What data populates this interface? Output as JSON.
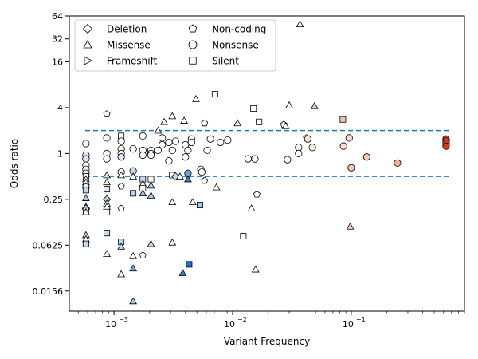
{
  "chart_data": {
    "type": "scatter",
    "xlabel": "Variant Frequency",
    "ylabel": "Odds ratio",
    "xscale": "log",
    "yscale": "log2",
    "xlim": [
      0.00042,
      0.9
    ],
    "ylim": [
      0.0085,
      64
    ],
    "x_ticks": [
      {
        "value": 0.001,
        "base": "10",
        "exp": "−3"
      },
      {
        "value": 0.01,
        "base": "10",
        "exp": "−2"
      },
      {
        "value": 0.1,
        "base": "10",
        "exp": "−1"
      }
    ],
    "y_ticks": [
      {
        "value": 0.015625,
        "label": "0.0156"
      },
      {
        "value": 0.0625,
        "label": "0.0625"
      },
      {
        "value": 0.25,
        "label": "0.25"
      },
      {
        "value": 1,
        "label": "1"
      },
      {
        "value": 4,
        "label": "4"
      },
      {
        "value": 16,
        "label": "16"
      },
      {
        "value": 32,
        "label": "32"
      },
      {
        "value": 64,
        "label": "64"
      }
    ],
    "reference_lines": [
      2.0,
      0.5
    ],
    "reference_line_color": "#1f77b4",
    "legend": {
      "placement": "top-left",
      "entries": [
        {
          "label": "Deletion",
          "marker": "diamond"
        },
        {
          "label": "Missense",
          "marker": "triangle-up"
        },
        {
          "label": "Frameshift",
          "marker": "triangle-right"
        },
        {
          "label": "Non-coding",
          "marker": "pentagon"
        },
        {
          "label": "Nonsense",
          "marker": "x-circle"
        },
        {
          "label": "Silent",
          "marker": "square"
        }
      ]
    },
    "colormap": {
      "low": "#1f6fd1",
      "mid": "#ffffff",
      "high": "#d73a1e"
    },
    "points": [
      {
        "x": 0.00058,
        "y": 1.35,
        "m": "circle",
        "c": "#ffffff"
      },
      {
        "x": 0.00058,
        "y": 0.95,
        "m": "circle",
        "c": "#e6eef8"
      },
      {
        "x": 0.00058,
        "y": 0.85,
        "m": "circle",
        "c": "#dbe7f5"
      },
      {
        "x": 0.00058,
        "y": 0.7,
        "m": "circle",
        "c": "#ffffff"
      },
      {
        "x": 0.00058,
        "y": 0.62,
        "m": "circle",
        "c": "#eef3fa"
      },
      {
        "x": 0.00058,
        "y": 0.55,
        "m": "circle",
        "c": "#ffffff"
      },
      {
        "x": 0.00058,
        "y": 0.5,
        "m": "square",
        "c": "#ffffff"
      },
      {
        "x": 0.00058,
        "y": 0.46,
        "m": "triangle",
        "c": "#ffffff"
      },
      {
        "x": 0.00058,
        "y": 0.42,
        "m": "triangle",
        "c": "#dbe7f5"
      },
      {
        "x": 0.00058,
        "y": 0.36,
        "m": "circle",
        "c": "#eef3fa"
      },
      {
        "x": 0.00058,
        "y": 0.33,
        "m": "square",
        "c": "#c6d9ef"
      },
      {
        "x": 0.00058,
        "y": 0.26,
        "m": "triangle",
        "c": "#a9c6ea"
      },
      {
        "x": 0.00058,
        "y": 0.2,
        "m": "triangle",
        "c": "#ffffff"
      },
      {
        "x": 0.00058,
        "y": 0.19,
        "m": "diamond",
        "c": "#bcd3ee"
      },
      {
        "x": 0.00058,
        "y": 0.18,
        "m": "square",
        "c": "#dbe7f5"
      },
      {
        "x": 0.00058,
        "y": 0.17,
        "m": "triangle",
        "c": "#ffffff"
      },
      {
        "x": 0.00058,
        "y": 0.085,
        "m": "triangle",
        "c": "#c6d9ef"
      },
      {
        "x": 0.00058,
        "y": 0.075,
        "m": "triangle",
        "c": "#ffffff"
      },
      {
        "x": 0.00058,
        "y": 0.065,
        "m": "square",
        "c": "#c6d9ef"
      },
      {
        "x": 0.00087,
        "y": 3.3,
        "m": "pentagon",
        "c": "#ffffff"
      },
      {
        "x": 0.00087,
        "y": 1.6,
        "m": "circle",
        "c": "#ffffff"
      },
      {
        "x": 0.00087,
        "y": 1.0,
        "m": "circle",
        "c": "#ffffff"
      },
      {
        "x": 0.00087,
        "y": 0.85,
        "m": "circle",
        "c": "#ffffff"
      },
      {
        "x": 0.00087,
        "y": 0.52,
        "m": "triangle",
        "c": "#dbe7f5"
      },
      {
        "x": 0.00087,
        "y": 0.42,
        "m": "triangle",
        "c": "#ffffff"
      },
      {
        "x": 0.00087,
        "y": 0.34,
        "m": "square",
        "c": "#dbe7f5"
      },
      {
        "x": 0.00087,
        "y": 0.25,
        "m": "diamond",
        "c": "#bcd3ee"
      },
      {
        "x": 0.00087,
        "y": 0.22,
        "m": "triangle",
        "c": "#ffffff"
      },
      {
        "x": 0.00087,
        "y": 0.2,
        "m": "triangle",
        "c": "#ffffff"
      },
      {
        "x": 0.00087,
        "y": 0.17,
        "m": "square",
        "c": "#ffffff"
      },
      {
        "x": 0.00087,
        "y": 0.09,
        "m": "square",
        "c": "#c6d9ef"
      },
      {
        "x": 0.00087,
        "y": 0.048,
        "m": "triangle",
        "c": "#ffffff"
      },
      {
        "x": 0.00115,
        "y": 1.7,
        "m": "square",
        "c": "#ffffff"
      },
      {
        "x": 0.00115,
        "y": 1.45,
        "m": "circle",
        "c": "#ffffff"
      },
      {
        "x": 0.00115,
        "y": 1.15,
        "m": "circle",
        "c": "#ffffff"
      },
      {
        "x": 0.00115,
        "y": 1.0,
        "m": "circle",
        "c": "#ffffff"
      },
      {
        "x": 0.00115,
        "y": 0.9,
        "m": "circle",
        "c": "#dbe7f5"
      },
      {
        "x": 0.00115,
        "y": 0.57,
        "m": "circle",
        "c": "#ffffff"
      },
      {
        "x": 0.00115,
        "y": 0.52,
        "m": "triangle",
        "c": "#ffffff"
      },
      {
        "x": 0.00115,
        "y": 0.37,
        "m": "pentagon",
        "c": "#ffffff"
      },
      {
        "x": 0.00115,
        "y": 0.19,
        "m": "pentagon",
        "c": "#ffffff"
      },
      {
        "x": 0.00115,
        "y": 0.069,
        "m": "square",
        "c": "#bcd3ee"
      },
      {
        "x": 0.00115,
        "y": 0.06,
        "m": "triangle",
        "c": "#bcd3ee"
      },
      {
        "x": 0.00115,
        "y": 0.026,
        "m": "triangle",
        "c": "#ffffff"
      },
      {
        "x": 0.00145,
        "y": 1.15,
        "m": "circle",
        "c": "#ffffff"
      },
      {
        "x": 0.00145,
        "y": 0.59,
        "m": "circle",
        "c": "#c6d9ef"
      },
      {
        "x": 0.00145,
        "y": 0.5,
        "m": "triangle",
        "c": "#ffffff"
      },
      {
        "x": 0.00145,
        "y": 0.3,
        "m": "square",
        "c": "#bcd3ee"
      },
      {
        "x": 0.00145,
        "y": 0.045,
        "m": "triangle",
        "c": "#ffffff"
      },
      {
        "x": 0.00145,
        "y": 0.031,
        "m": "triangle",
        "c": "#6f9fd9"
      },
      {
        "x": 0.00145,
        "y": 0.0115,
        "m": "triangle",
        "c": "#a9c6ea"
      },
      {
        "x": 0.00175,
        "y": 1.7,
        "m": "circle",
        "c": "#ffffff"
      },
      {
        "x": 0.00175,
        "y": 1.1,
        "m": "circle",
        "c": "#ffffff"
      },
      {
        "x": 0.00175,
        "y": 0.95,
        "m": "circle",
        "c": "#ffffff"
      },
      {
        "x": 0.00175,
        "y": 0.46,
        "m": "square",
        "c": "#c6d9ef"
      },
      {
        "x": 0.00175,
        "y": 0.4,
        "m": "triangle",
        "c": "#ffffff"
      },
      {
        "x": 0.00175,
        "y": 0.35,
        "m": "square",
        "c": "#ffffff"
      },
      {
        "x": 0.00175,
        "y": 0.3,
        "m": "triangle",
        "c": "#a9c6ea"
      },
      {
        "x": 0.00175,
        "y": 0.046,
        "m": "pentagon",
        "c": "#ffffff"
      },
      {
        "x": 0.00205,
        "y": 1.1,
        "m": "circle",
        "c": "#ffffff"
      },
      {
        "x": 0.00205,
        "y": 1.0,
        "m": "circle",
        "c": "#ffffff"
      },
      {
        "x": 0.00205,
        "y": 0.95,
        "m": "circle",
        "c": "#ffffff"
      },
      {
        "x": 0.00205,
        "y": 0.46,
        "m": "square",
        "c": "#ffffff"
      },
      {
        "x": 0.00205,
        "y": 0.38,
        "m": "triangle",
        "c": "#bcd3ee"
      },
      {
        "x": 0.00205,
        "y": 0.28,
        "m": "triangle",
        "c": "#a9c6ea"
      },
      {
        "x": 0.00205,
        "y": 0.065,
        "m": "triangle",
        "c": "#c6d9ef"
      },
      {
        "x": 0.00235,
        "y": 2.0,
        "m": "triangle",
        "c": "#ffffff"
      },
      {
        "x": 0.00235,
        "y": 1.1,
        "m": "circle",
        "c": "#ffffff"
      },
      {
        "x": 0.00255,
        "y": 1.6,
        "m": "circle",
        "c": "#ffffff"
      },
      {
        "x": 0.00255,
        "y": 1.3,
        "m": "circle",
        "c": "#ffffff"
      },
      {
        "x": 0.00265,
        "y": 2.6,
        "m": "triangle",
        "c": "#ffffff"
      },
      {
        "x": 0.0029,
        "y": 1.4,
        "m": "circle",
        "c": "#ffffff"
      },
      {
        "x": 0.0029,
        "y": 0.8,
        "m": "circle",
        "c": "#ffffff"
      },
      {
        "x": 0.0031,
        "y": 3.1,
        "m": "triangle",
        "c": "#ffffff"
      },
      {
        "x": 0.0031,
        "y": 1.1,
        "m": "circle",
        "c": "#ffffff"
      },
      {
        "x": 0.0031,
        "y": 0.52,
        "m": "square",
        "c": "#ffffff"
      },
      {
        "x": 0.0031,
        "y": 0.23,
        "m": "triangle",
        "c": "#ffffff"
      },
      {
        "x": 0.0031,
        "y": 0.068,
        "m": "triangle",
        "c": "#ffffff"
      },
      {
        "x": 0.0033,
        "y": 1.45,
        "m": "circle",
        "c": "#ffffff"
      },
      {
        "x": 0.0033,
        "y": 0.5,
        "m": "diamond",
        "c": "#c6d9ef"
      },
      {
        "x": 0.0036,
        "y": 0.5,
        "m": "triangle",
        "c": "#ffffff"
      },
      {
        "x": 0.0038,
        "y": 0.027,
        "m": "triangle",
        "c": "#3b82d6"
      },
      {
        "x": 0.0039,
        "y": 2.7,
        "m": "triangle",
        "c": "#ffffff"
      },
      {
        "x": 0.004,
        "y": 1.3,
        "m": "circle",
        "c": "#ffffff"
      },
      {
        "x": 0.004,
        "y": 0.9,
        "m": "circle",
        "c": "#ffffff"
      },
      {
        "x": 0.0042,
        "y": 1.1,
        "m": "circle",
        "c": "#ffffff"
      },
      {
        "x": 0.0042,
        "y": 0.55,
        "m": "circle",
        "c": "#6f9fd9"
      },
      {
        "x": 0.0042,
        "y": 0.46,
        "m": "triangle",
        "c": "#3b82d6"
      },
      {
        "x": 0.0043,
        "y": 0.035,
        "m": "square",
        "c": "#1f6fd1"
      },
      {
        "x": 0.0045,
        "y": 1.55,
        "m": "circle",
        "c": "#ffffff"
      },
      {
        "x": 0.0045,
        "y": 1.4,
        "m": "circle",
        "c": "#ffffff"
      },
      {
        "x": 0.0046,
        "y": 0.23,
        "m": "triangle",
        "c": "#ffffff"
      },
      {
        "x": 0.0049,
        "y": 5.2,
        "m": "triangle",
        "c": "#ffffff"
      },
      {
        "x": 0.0053,
        "y": 0.21,
        "m": "square",
        "c": "#a9c6ea"
      },
      {
        "x": 0.0054,
        "y": 0.62,
        "m": "circle",
        "c": "#ffffff"
      },
      {
        "x": 0.0055,
        "y": 0.57,
        "m": "circle",
        "c": "#ffffff"
      },
      {
        "x": 0.0058,
        "y": 2.5,
        "m": "pentagon",
        "c": "#ffffff"
      },
      {
        "x": 0.0058,
        "y": 0.44,
        "m": "pentagon",
        "c": "#ffffff"
      },
      {
        "x": 0.0061,
        "y": 1.1,
        "m": "circle",
        "c": "#ffffff"
      },
      {
        "x": 0.0065,
        "y": 1.55,
        "m": "circle",
        "c": "#ffffff"
      },
      {
        "x": 0.0071,
        "y": 6.0,
        "m": "square",
        "c": "#ffffff"
      },
      {
        "x": 0.0073,
        "y": 0.36,
        "m": "triangle",
        "c": "#ffffff"
      },
      {
        "x": 0.0079,
        "y": 1.4,
        "m": "circle",
        "c": "#ffffff"
      },
      {
        "x": 0.0091,
        "y": 1.5,
        "m": "circle",
        "c": "#ffffff"
      },
      {
        "x": 0.011,
        "y": 2.5,
        "m": "triangle",
        "c": "#ffffff"
      },
      {
        "x": 0.0123,
        "y": 0.082,
        "m": "square",
        "c": "#ffffff"
      },
      {
        "x": 0.0135,
        "y": 0.85,
        "m": "circle",
        "c": "#ffffff"
      },
      {
        "x": 0.0144,
        "y": 0.19,
        "m": "triangle",
        "c": "#ffffff"
      },
      {
        "x": 0.015,
        "y": 3.9,
        "m": "square",
        "c": "#ffffff"
      },
      {
        "x": 0.0154,
        "y": 0.85,
        "m": "circle",
        "c": "#ffffff"
      },
      {
        "x": 0.0156,
        "y": 0.03,
        "m": "triangle",
        "c": "#ffffff"
      },
      {
        "x": 0.016,
        "y": 0.29,
        "m": "pentagon",
        "c": "#ffffff"
      },
      {
        "x": 0.0167,
        "y": 2.6,
        "m": "square",
        "c": "#ffffff"
      },
      {
        "x": 0.027,
        "y": 2.4,
        "m": "pentagon",
        "c": "#ffffff"
      },
      {
        "x": 0.028,
        "y": 2.3,
        "m": "triangle",
        "c": "#ffffff"
      },
      {
        "x": 0.029,
        "y": 0.83,
        "m": "circle",
        "c": "#ffffff"
      },
      {
        "x": 0.03,
        "y": 4.3,
        "m": "triangle",
        "c": "#ffffff"
      },
      {
        "x": 0.036,
        "y": 1.2,
        "m": "circle",
        "c": "#fdf4ef"
      },
      {
        "x": 0.036,
        "y": 1.0,
        "m": "circle",
        "c": "#ffffff"
      },
      {
        "x": 0.037,
        "y": 50,
        "m": "triangle",
        "c": "#ffffff"
      },
      {
        "x": 0.042,
        "y": 1.6,
        "m": "pentagon",
        "c": "#ffffff"
      },
      {
        "x": 0.043,
        "y": 1.55,
        "m": "circle",
        "c": "#f7e1d7"
      },
      {
        "x": 0.047,
        "y": 1.2,
        "m": "circle",
        "c": "#fbeae2"
      },
      {
        "x": 0.049,
        "y": 4.2,
        "m": "triangle",
        "c": "#f4d1c3"
      },
      {
        "x": 0.085,
        "y": 2.8,
        "m": "square",
        "c": "#f2c6b4"
      },
      {
        "x": 0.086,
        "y": 1.25,
        "m": "circle",
        "c": "#f7dccf"
      },
      {
        "x": 0.096,
        "y": 1.6,
        "m": "circle",
        "c": "#f7dccf"
      },
      {
        "x": 0.098,
        "y": 0.11,
        "m": "triangle",
        "c": "#f4d1c3"
      },
      {
        "x": 0.1,
        "y": 0.65,
        "m": "circle",
        "c": "#f2c6b4"
      },
      {
        "x": 0.135,
        "y": 0.9,
        "m": "circle",
        "c": "#f2c6b4"
      },
      {
        "x": 0.245,
        "y": 0.75,
        "m": "circle",
        "c": "#eeb195"
      },
      {
        "x": 0.63,
        "y": 1.55,
        "m": "circle",
        "c": "#d73a1e"
      },
      {
        "x": 0.63,
        "y": 1.45,
        "m": "circle",
        "c": "#de5335"
      },
      {
        "x": 0.63,
        "y": 1.35,
        "m": "circle",
        "c": "#dc4a2b"
      },
      {
        "x": 0.63,
        "y": 1.25,
        "m": "circle",
        "c": "#d73a1e"
      }
    ]
  }
}
